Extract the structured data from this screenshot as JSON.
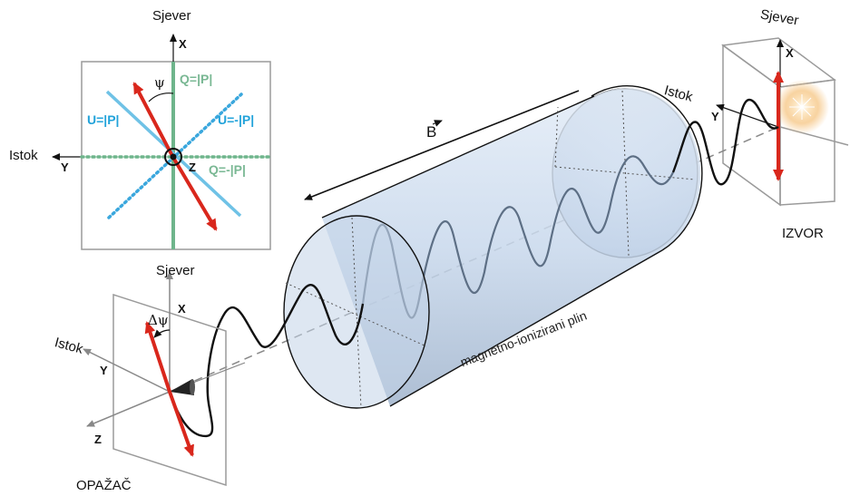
{
  "labels": {
    "north": "Sjever",
    "east": "Istok",
    "x": "X",
    "y": "Y",
    "z": "Z",
    "source": "IZVOR",
    "observer": "OPAŽAČ",
    "b_field": "B",
    "plasma": "magnetno-ionizirani plin",
    "psi": "ψ",
    "delta_psi": "Δψ"
  },
  "stokes": {
    "q_pos": "Q=|P|",
    "q_neg": "Q=-|P|",
    "u_pos": "U=|P|",
    "u_neg": "U=-|P|"
  },
  "colors": {
    "red_arrow": "#d9271c",
    "q_line": "#6fb58c",
    "u_line": "#6fc2e6",
    "u_text": "#22a3da",
    "cylinder_fill": "#c9d9ee",
    "wave": "#111111",
    "wave_inside": "#5d6f85",
    "star": "#f7c98a"
  },
  "icons": [
    "sun-burst-icon",
    "observer-cone-icon",
    "arrow-vector-icon"
  ]
}
